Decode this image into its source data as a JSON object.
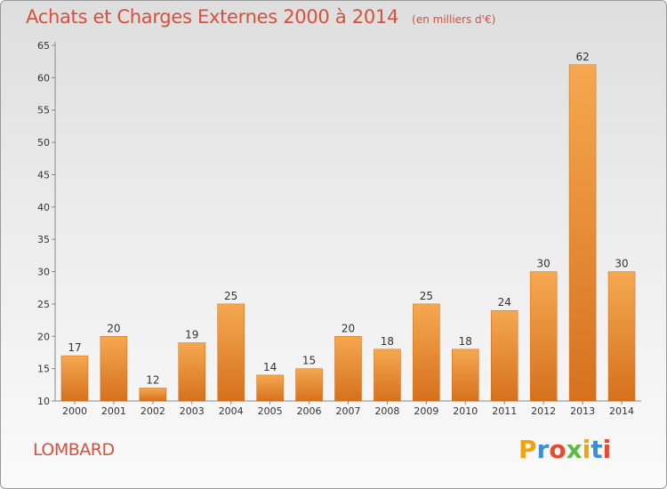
{
  "header": {
    "title": "Achats et Charges Externes 2000 à 2014",
    "subtitle": "(en milliers d'€)"
  },
  "footer": {
    "location": "LOMBARD",
    "brand_letters": [
      "P",
      "r",
      "o",
      "x",
      "i",
      "t",
      "i"
    ]
  },
  "colors": {
    "accent": "#d94f3a",
    "bar_light": "#f5a64f",
    "bar_dark": "#d9731f"
  },
  "chart_data": {
    "type": "bar",
    "title": "Achats et Charges Externes 2000 à 2014",
    "subtitle": "(en milliers d'€)",
    "xlabel": "",
    "ylabel": "",
    "categories": [
      "2000",
      "2001",
      "2002",
      "2003",
      "2004",
      "2005",
      "2006",
      "2007",
      "2008",
      "2009",
      "2010",
      "2011",
      "2012",
      "2013",
      "2014"
    ],
    "values": [
      17,
      20,
      12,
      19,
      25,
      14,
      15,
      20,
      18,
      25,
      18,
      24,
      30,
      62,
      30
    ],
    "ylim": [
      10,
      65
    ],
    "yticks": [
      10,
      15,
      20,
      25,
      30,
      35,
      40,
      45,
      50,
      55,
      60,
      65
    ],
    "grid": false,
    "legend": "none"
  }
}
